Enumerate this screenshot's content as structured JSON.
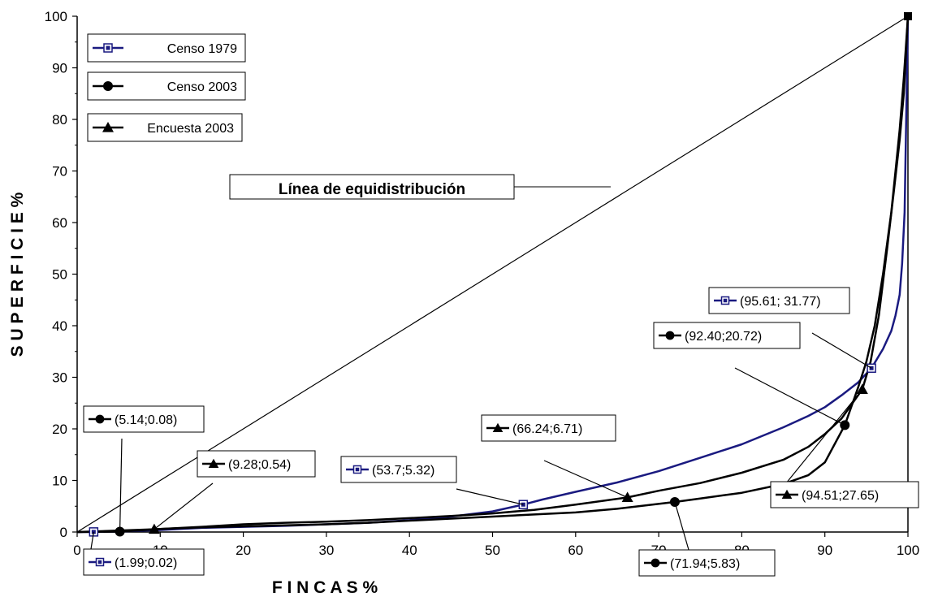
{
  "chart_data": {
    "type": "line",
    "xlabel": "F I N C A S %",
    "ylabel": "S U P E R F I C I E %",
    "xlim": [
      0,
      100
    ],
    "ylim": [
      0,
      100
    ],
    "xticks": [
      "0",
      "10",
      "20",
      "30",
      "40",
      "50",
      "60",
      "70",
      "80",
      "90",
      "100"
    ],
    "yticks": [
      "0",
      "10",
      "20",
      "30",
      "40",
      "50",
      "60",
      "70",
      "80",
      "90",
      "100"
    ],
    "equality_line_label": "Línea de equidistribución",
    "colors": {
      "censo_1979": "#1a1a80",
      "censo_2003": "#000000",
      "encuesta_2003": "#000000",
      "diagonal": "#000000"
    },
    "series": [
      {
        "name": "Censo 1979",
        "marker": "square",
        "x": [
          0,
          1.99,
          5,
          10,
          15,
          20,
          25,
          30,
          35,
          40,
          45,
          50,
          53.7,
          56,
          60,
          65,
          70,
          75,
          80,
          85,
          88,
          90,
          92,
          94,
          95.61,
          97,
          98,
          98.5,
          99,
          99.3,
          99.6,
          100
        ],
        "y": [
          0,
          0.02,
          0.1,
          0.4,
          0.8,
          1.0,
          1.2,
          1.5,
          1.8,
          2.3,
          3.0,
          4.0,
          5.32,
          6.3,
          7.8,
          9.6,
          11.8,
          14.4,
          17.0,
          20.3,
          22.5,
          24.2,
          26.5,
          29.0,
          31.77,
          35.5,
          39.0,
          42.0,
          46.0,
          52.0,
          62.0,
          100
        ]
      },
      {
        "name": "Censo 2003",
        "marker": "circle",
        "x": [
          0,
          5.14,
          10,
          15,
          20,
          25,
          30,
          35,
          40,
          45,
          50,
          55,
          60,
          65,
          71.94,
          75,
          80,
          85,
          88,
          90,
          92.4,
          94,
          95,
          96,
          97,
          98,
          98.5,
          99,
          99.5,
          100
        ],
        "y": [
          0,
          0.08,
          0.6,
          0.9,
          1.1,
          1.3,
          1.5,
          1.8,
          2.2,
          2.6,
          3.0,
          3.4,
          3.8,
          4.5,
          5.83,
          6.5,
          7.6,
          9.3,
          11.0,
          13.5,
          20.72,
          28.0,
          33.0,
          40.0,
          50.0,
          62.0,
          70.0,
          78.0,
          88.0,
          100
        ]
      },
      {
        "name": "Encuesta 2003",
        "marker": "triangle",
        "x": [
          0,
          9.28,
          15,
          20,
          25,
          30,
          35,
          40,
          45,
          50,
          55,
          60,
          66.24,
          70,
          75,
          80,
          85,
          88,
          90,
          92,
          94.51,
          95.5,
          96.5,
          97.5,
          98.3,
          99,
          99.5,
          100
        ],
        "y": [
          0,
          0.54,
          1.0,
          1.5,
          1.8,
          2.0,
          2.3,
          2.7,
          3.1,
          3.6,
          4.3,
          5.3,
          6.71,
          8.0,
          9.5,
          11.5,
          14.0,
          16.5,
          19.0,
          22.0,
          27.65,
          33.0,
          42.0,
          55.0,
          66.0,
          76.0,
          85.0,
          100
        ]
      }
    ],
    "annotations": [
      {
        "series": "Censo 1979",
        "label": "(1.99;0.02)",
        "x": 1.99,
        "y": 0.02
      },
      {
        "series": "Censo 2003",
        "label": "(5.14;0.08)",
        "x": 5.14,
        "y": 0.08
      },
      {
        "series": "Encuesta 2003",
        "label": "(9.28;0.54)",
        "x": 9.28,
        "y": 0.54
      },
      {
        "series": "Censo 1979",
        "label": "(53.7;5.32)",
        "x": 53.7,
        "y": 5.32
      },
      {
        "series": "Encuesta 2003",
        "label": "(66.24;6.71)",
        "x": 66.24,
        "y": 6.71
      },
      {
        "series": "Censo 2003",
        "label": "(71.94;5.83)",
        "x": 71.94,
        "y": 5.83
      },
      {
        "series": "Censo 2003",
        "label": "(92.40;20.72)",
        "x": 92.4,
        "y": 20.72
      },
      {
        "series": "Encuesta 2003",
        "label": "(94.51;27.65)",
        "x": 94.51,
        "y": 27.65
      },
      {
        "series": "Censo 1979",
        "label": "(95.61; 31.77)",
        "x": 95.61,
        "y": 31.77
      }
    ]
  }
}
